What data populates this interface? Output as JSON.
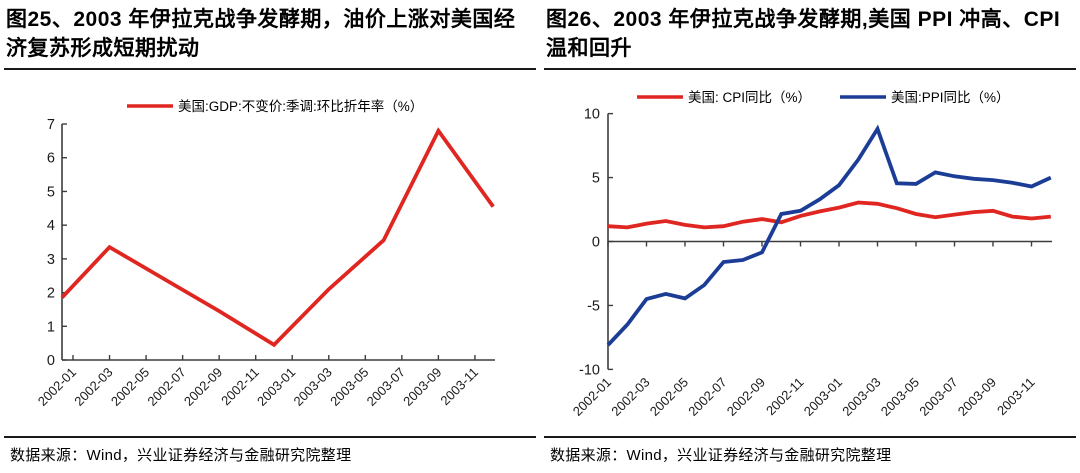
{
  "figures": [
    {
      "title": "图25、2003 年伊拉克战争发酵期，油价上涨对美国经济复苏形成短期扰动",
      "source": "数据来源：Wind，兴业证券经济与金融研究院整理"
    },
    {
      "title": "图26、2003 年伊拉克战争发酵期,美国 PPI 冲高、CPI 温和回升",
      "source": "数据来源：Wind，兴业证券经济与金融研究院整理"
    }
  ],
  "chart_data": [
    {
      "type": "line",
      "title": "图25、2003 年伊拉克战争发酵期，油价上涨对美国经济复苏形成短期扰动",
      "legend_position": "top-center",
      "legend": [
        {
          "label": "美国:GDP:不变价:季调:环比折年率（%）",
          "color": "#e02621"
        }
      ],
      "ylim": [
        0,
        7
      ],
      "yticks": [
        0,
        1,
        2,
        3,
        4,
        5,
        6,
        7
      ],
      "grid": false,
      "x_unit": "months since 2002-01",
      "x_tick_labels": [
        "2002-01",
        "2002-03",
        "2002-05",
        "2002-07",
        "2002-09",
        "2002-11",
        "2003-01",
        "2003-03",
        "2003-05",
        "2003-07",
        "2003-09",
        "2003-11"
      ],
      "series": [
        {
          "name": "美国:GDP:不变价:季调:环比折年率（%）",
          "color": "#e02621",
          "x_months": [
            -0.6,
            2,
            5,
            8,
            11,
            14,
            17,
            20,
            23
          ],
          "x_dates": [
            "2002-01",
            "2002-03",
            "2002-06",
            "2002-09",
            "2002-12",
            "2003-03",
            "2003-06",
            "2003-09",
            "2003-12"
          ],
          "values": [
            1.85,
            3.35,
            2.4,
            1.45,
            0.45,
            2.1,
            3.55,
            6.8,
            4.55
          ]
        }
      ]
    },
    {
      "type": "line",
      "title": "图26、2003 年伊拉克战争发酵期,美国 PPI 冲高、CPI 温和回升",
      "legend_position": "top-center",
      "legend": [
        {
          "label": "美国: CPI同比（%）",
          "color": "#e02621"
        },
        {
          "label": "美国:PPI同比（%）",
          "color": "#1c3d96"
        }
      ],
      "ylim": [
        -10,
        10
      ],
      "yticks": [
        10,
        5,
        0,
        -5,
        -10
      ],
      "grid": false,
      "zero_axis_line": true,
      "x_unit": "months since 2002-01",
      "x_tick_labels": [
        "2002-01",
        "2002-03",
        "2002-05",
        "2002-07",
        "2002-09",
        "2002-11",
        "2003-01",
        "2003-03",
        "2003-05",
        "2003-07",
        "2003-09",
        "2003-11"
      ],
      "series": [
        {
          "name": "美国: CPI同比（%）",
          "color": "#e02621",
          "x_months": [
            0,
            1,
            2,
            3,
            4,
            5,
            6,
            7,
            8,
            9,
            10,
            11,
            12,
            13,
            14,
            15,
            16,
            17,
            18,
            19,
            20,
            21,
            22,
            23
          ],
          "values": [
            1.2,
            1.1,
            1.4,
            1.6,
            1.3,
            1.1,
            1.2,
            1.55,
            1.75,
            1.5,
            2.0,
            2.35,
            2.65,
            3.05,
            2.95,
            2.6,
            2.15,
            1.9,
            2.1,
            2.3,
            2.4,
            1.95,
            1.8,
            1.95
          ]
        },
        {
          "name": "美国:PPI同比（%）",
          "color": "#1c3d96",
          "x_months": [
            0,
            1,
            2,
            3,
            4,
            5,
            6,
            7,
            8,
            9,
            10,
            11,
            12,
            13,
            14,
            15,
            16,
            17,
            18,
            19,
            20,
            21,
            22,
            23
          ],
          "values": [
            -8.1,
            -6.5,
            -4.5,
            -4.1,
            -4.45,
            -3.4,
            -1.6,
            -1.45,
            -0.85,
            2.15,
            2.4,
            3.3,
            4.4,
            6.4,
            8.8,
            4.55,
            4.5,
            5.4,
            5.1,
            4.9,
            4.8,
            4.6,
            4.3,
            5.0
          ]
        }
      ]
    }
  ]
}
